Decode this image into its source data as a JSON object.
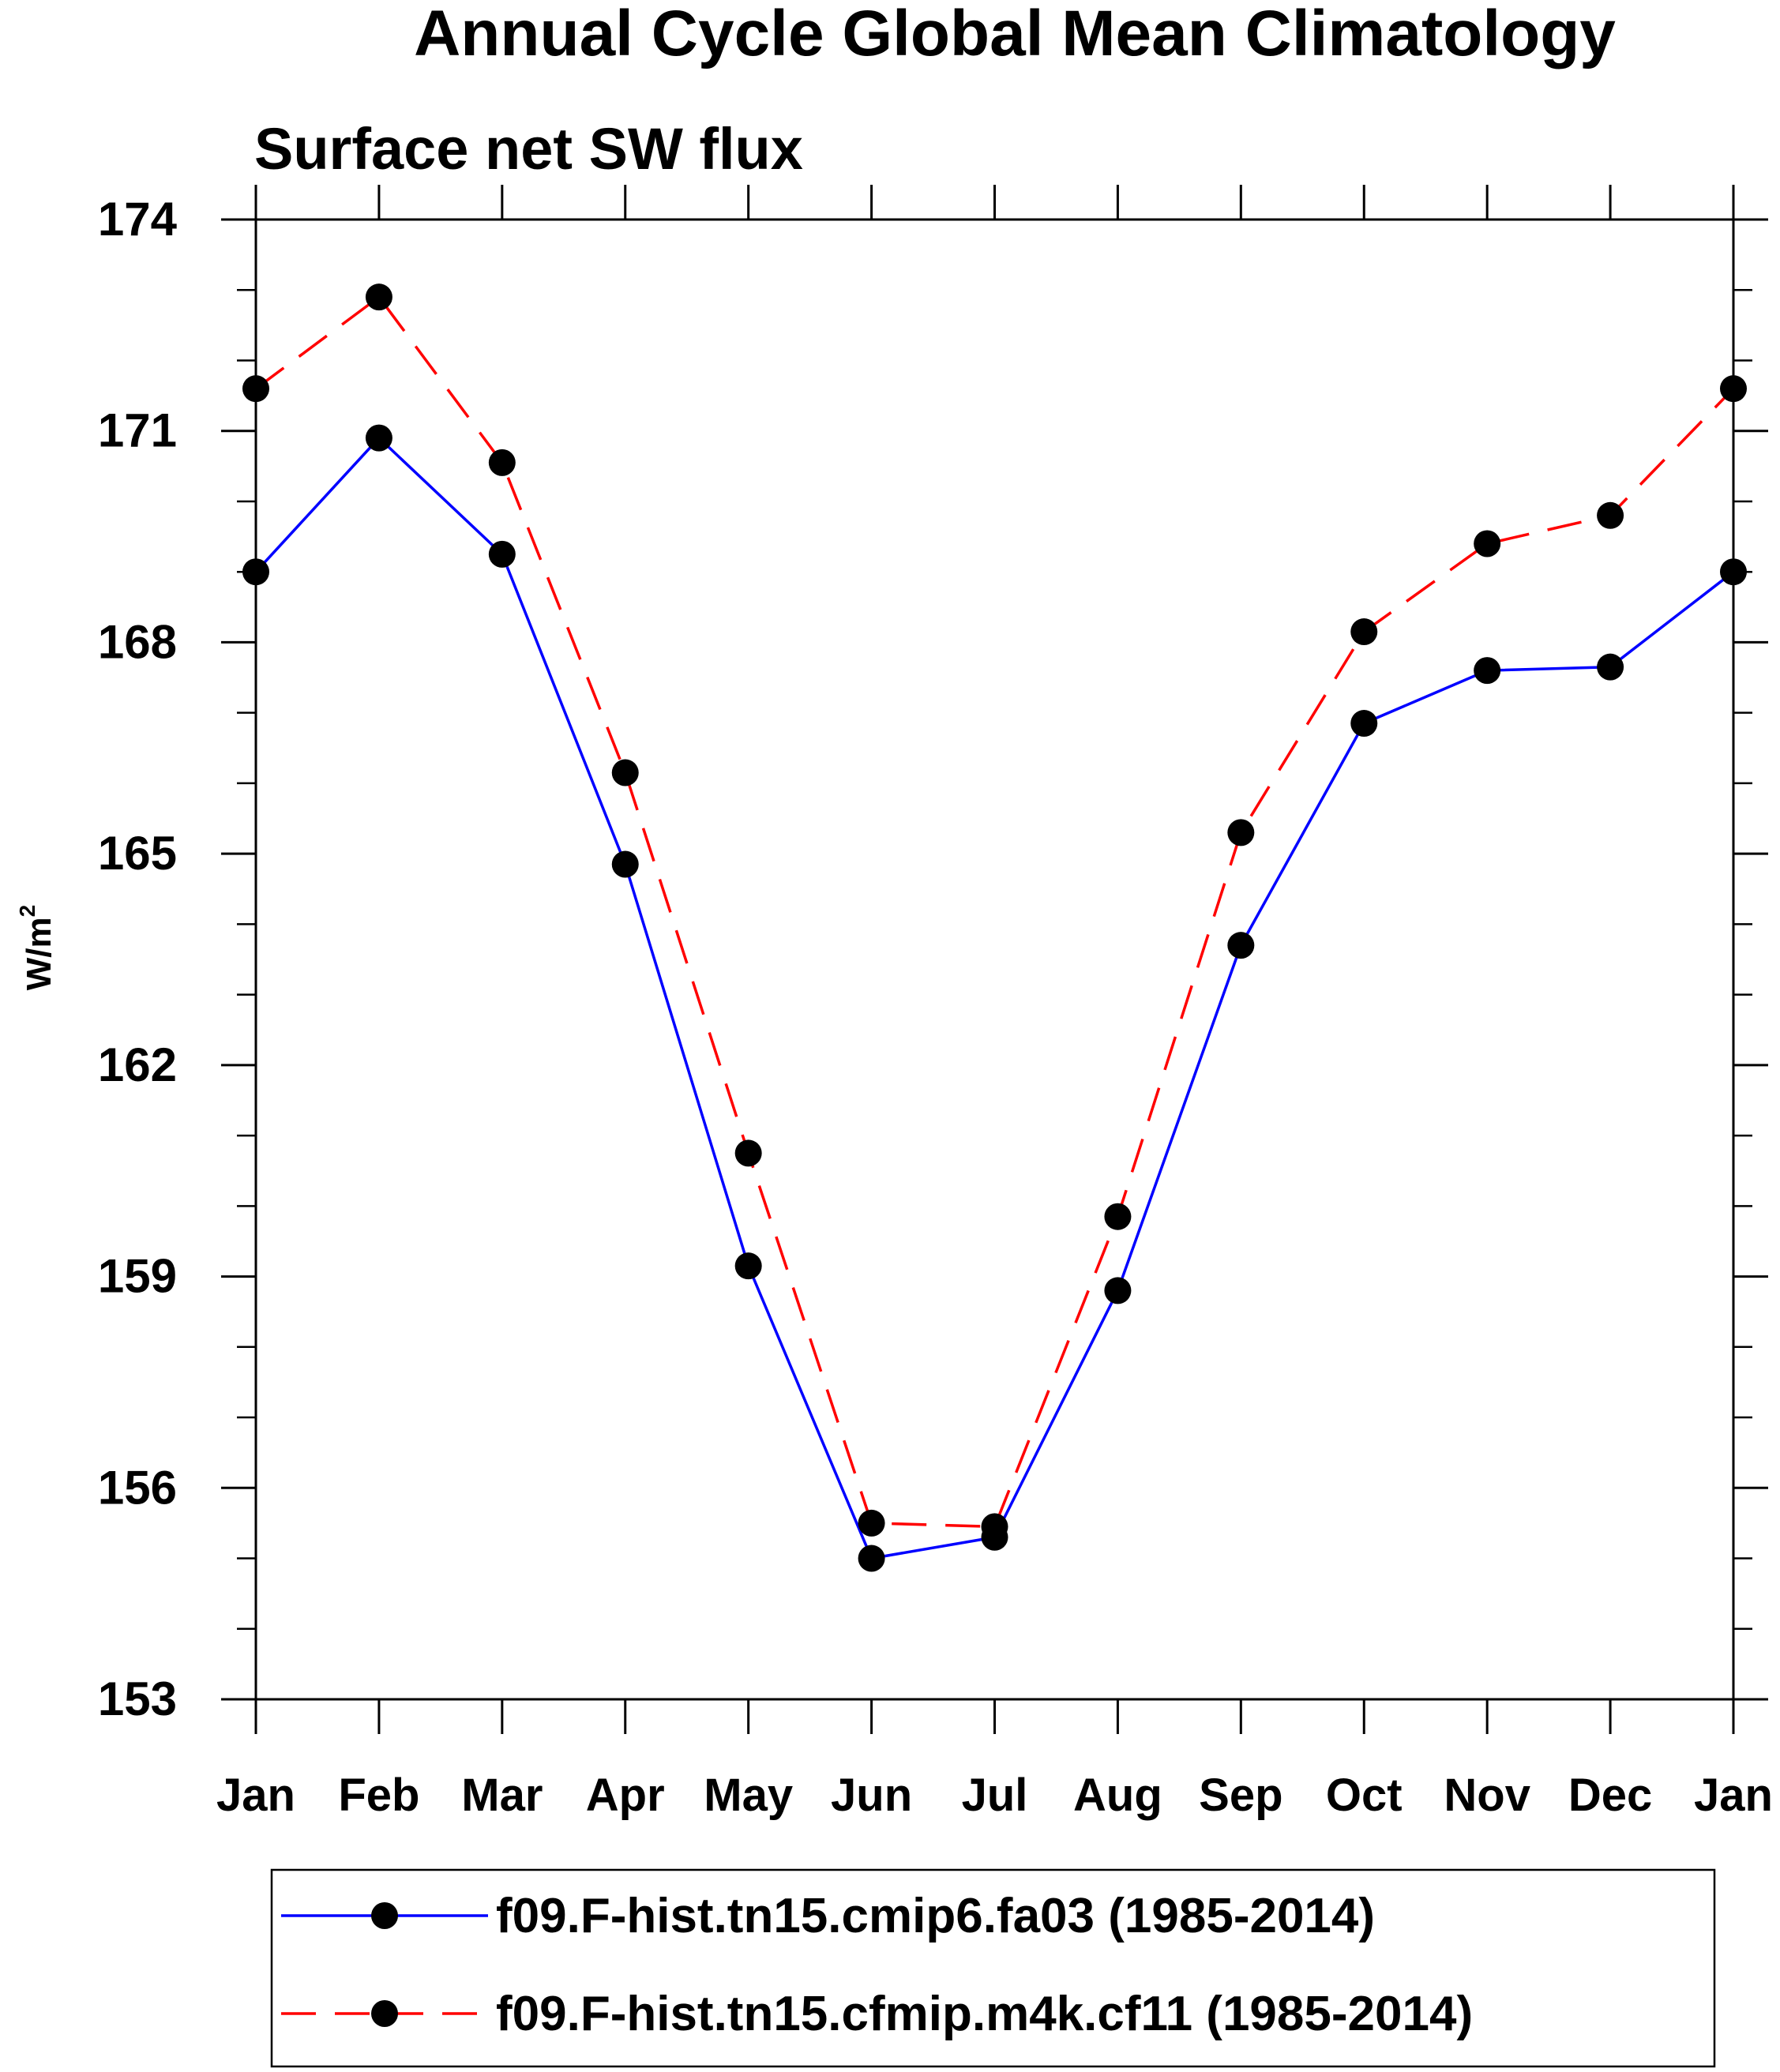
{
  "chart_data": {
    "type": "line",
    "title": "Annual Cycle Global Mean Climatology",
    "subtitle": "Surface net SW flux",
    "xlabel": "",
    "ylabel": "W/m",
    "ylabel_superscript": "2",
    "categories": [
      "Jan",
      "Feb",
      "Mar",
      "Apr",
      "May",
      "Jun",
      "Jul",
      "Aug",
      "Sep",
      "Oct",
      "Nov",
      "Dec",
      "Jan"
    ],
    "ylim": [
      153,
      174
    ],
    "yticks": [
      153,
      156,
      159,
      162,
      165,
      168,
      171,
      174
    ],
    "series": [
      {
        "name": "f09.F-hist.tn15.cmip6.fa03 (1985-2014)",
        "color": "#0000ff",
        "dash": "solid",
        "values": [
          169.0,
          170.9,
          169.25,
          164.85,
          159.15,
          155.0,
          155.3,
          158.8,
          163.7,
          166.85,
          167.6,
          167.65,
          169.0
        ]
      },
      {
        "name": "f09.F-hist.tn15.cfmip.m4k.cf11 (1985-2014)",
        "color": "#ff0000",
        "dash": "dashed",
        "values": [
          171.6,
          172.9,
          170.55,
          166.15,
          160.75,
          155.5,
          155.45,
          159.85,
          165.3,
          168.15,
          169.4,
          169.8,
          171.6
        ]
      }
    ],
    "marker_color": "#000000",
    "legend_position": "bottom"
  }
}
